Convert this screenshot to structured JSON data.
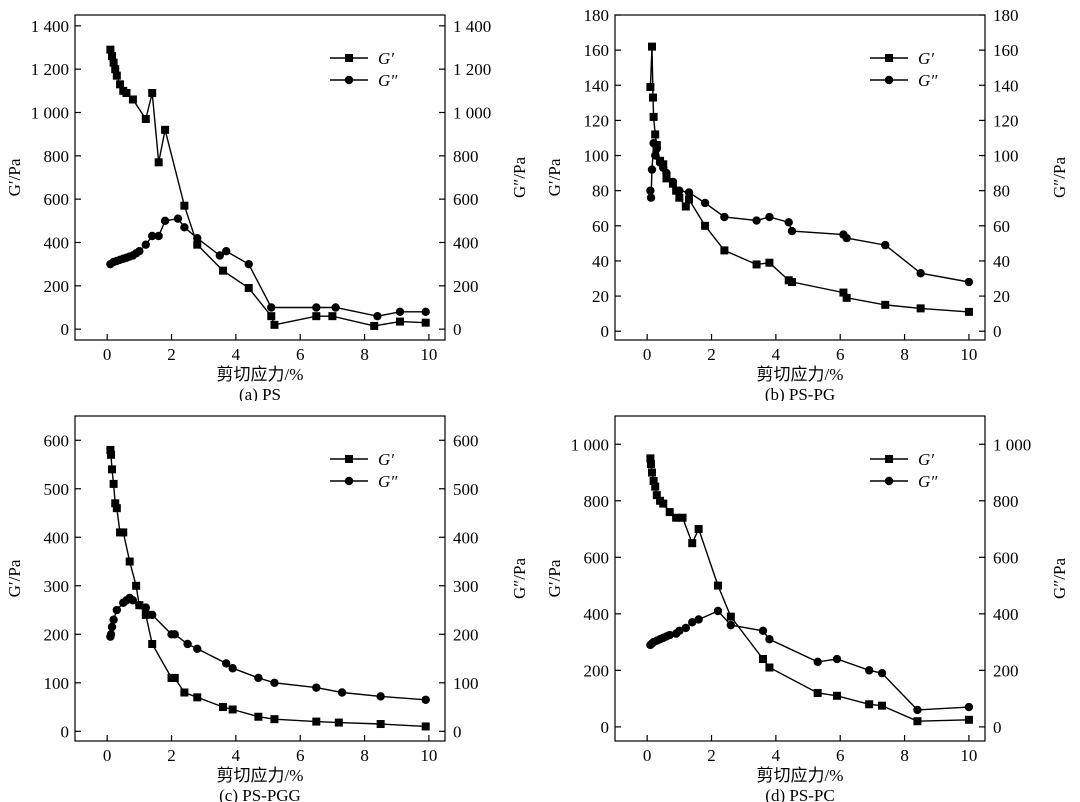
{
  "figure": {
    "panels": [
      {
        "caption": "(a) PS",
        "xlabel": "剪切应力/%",
        "ylabel_left": "G′/Pa",
        "ylabel_right": "G″/Pa",
        "legend": [
          "G′",
          "G″"
        ]
      },
      {
        "caption": "(b) PS-PG",
        "xlabel": "剪切应力/%",
        "ylabel_left": "G′/Pa",
        "ylabel_right": "G″/Pa",
        "legend": [
          "G′",
          "G″"
        ]
      },
      {
        "caption": "(c) PS-PGG",
        "xlabel": "剪切应力/%",
        "ylabel_left": "G′/Pa",
        "ylabel_right": "G″/Pa",
        "legend": [
          "G′",
          "G″"
        ]
      },
      {
        "caption": "(d) PS-PC",
        "xlabel": "剪切应力/%",
        "ylabel_left": "G′/Pa",
        "ylabel_right": "G″/Pa",
        "legend": [
          "G′",
          "G″"
        ]
      }
    ]
  },
  "chart_data": [
    {
      "type": "line",
      "title": "(a) PS",
      "xlabel": "剪切应力/%",
      "ylabel": "G′/Pa",
      "ylabel_right": "G″/Pa",
      "xlim": [
        -1,
        10.5
      ],
      "ylim": [
        -50,
        1450
      ],
      "xticks": [
        0,
        2,
        4,
        6,
        8,
        10
      ],
      "yticks": [
        0,
        200,
        400,
        600,
        800,
        1000,
        1200,
        1400
      ],
      "ytick_labels": [
        "0",
        "200",
        "400",
        "600",
        "800",
        "1 000",
        "1 200",
        "1 400"
      ],
      "legend_position": "top-right",
      "series": [
        {
          "name": "G′",
          "marker": "square",
          "x": [
            0.1,
            0.15,
            0.2,
            0.25,
            0.3,
            0.4,
            0.5,
            0.6,
            0.8,
            1.2,
            1.4,
            1.6,
            1.8,
            2.4,
            2.8,
            3.6,
            4.4,
            5.1,
            5.2,
            6.5,
            7.0,
            8.3,
            9.1,
            9.9
          ],
          "y": [
            1290,
            1260,
            1230,
            1200,
            1170,
            1130,
            1100,
            1090,
            1060,
            970,
            1090,
            770,
            920,
            570,
            390,
            270,
            190,
            60,
            20,
            60,
            60,
            15,
            35,
            30
          ]
        },
        {
          "name": "G″",
          "marker": "circle",
          "x": [
            0.1,
            0.2,
            0.3,
            0.4,
            0.5,
            0.6,
            0.7,
            0.8,
            0.9,
            1.0,
            1.2,
            1.4,
            1.6,
            1.8,
            2.2,
            2.4,
            2.8,
            3.5,
            3.7,
            4.4,
            5.1,
            6.5,
            7.1,
            8.4,
            9.1,
            9.9
          ],
          "y": [
            300,
            310,
            315,
            320,
            325,
            330,
            335,
            340,
            350,
            360,
            390,
            430,
            430,
            500,
            510,
            470,
            420,
            340,
            360,
            300,
            100,
            100,
            100,
            60,
            80,
            80
          ]
        }
      ]
    },
    {
      "type": "line",
      "title": "(b) PS-PG",
      "xlabel": "剪切应力/%",
      "ylabel": "G′/Pa",
      "ylabel_right": "G″/Pa",
      "xlim": [
        -1,
        10.5
      ],
      "ylim": [
        -5,
        180
      ],
      "xticks": [
        0,
        2,
        4,
        6,
        8,
        10
      ],
      "yticks": [
        0,
        20,
        40,
        60,
        80,
        100,
        120,
        140,
        160,
        180
      ],
      "ytick_labels": [
        "0",
        "20",
        "40",
        "60",
        "80",
        "100",
        "120",
        "140",
        "160",
        "180"
      ],
      "legend_position": "top-right",
      "series": [
        {
          "name": "G′",
          "marker": "square",
          "x": [
            0.1,
            0.15,
            0.18,
            0.2,
            0.25,
            0.3,
            0.4,
            0.5,
            0.6,
            0.8,
            0.9,
            1.0,
            1.2,
            1.3,
            1.8,
            2.4,
            3.4,
            3.8,
            4.4,
            4.5,
            6.1,
            6.2,
            7.4,
            8.5,
            10.0
          ],
          "y": [
            139,
            162,
            133,
            122,
            112,
            106,
            97,
            95,
            87,
            84,
            80,
            76,
            71,
            75,
            60,
            46,
            38,
            39,
            29,
            28,
            22,
            19,
            15,
            13,
            11
          ]
        },
        {
          "name": "G″",
          "marker": "circle",
          "x": [
            0.1,
            0.12,
            0.15,
            0.2,
            0.25,
            0.3,
            0.4,
            0.5,
            0.6,
            0.8,
            1.0,
            1.3,
            1.8,
            2.4,
            3.4,
            3.8,
            4.4,
            4.5,
            6.1,
            6.2,
            7.4,
            8.5,
            10.0
          ],
          "y": [
            80,
            76,
            92,
            107,
            100,
            104,
            96,
            93,
            90,
            85,
            80,
            79,
            73,
            65,
            63,
            65,
            62,
            57,
            55,
            53,
            49,
            33,
            28
          ]
        }
      ]
    },
    {
      "type": "line",
      "title": "(c) PS-PGG",
      "xlabel": "剪切应力/%",
      "ylabel": "G′/Pa",
      "ylabel_right": "G″/Pa",
      "xlim": [
        -1,
        10.5
      ],
      "ylim": [
        -20,
        650
      ],
      "xticks": [
        0,
        2,
        4,
        6,
        8,
        10
      ],
      "yticks": [
        0,
        100,
        200,
        300,
        400,
        500,
        600
      ],
      "ytick_labels": [
        "0",
        "100",
        "200",
        "300",
        "400",
        "500",
        "600"
      ],
      "legend_position": "top-right",
      "series": [
        {
          "name": "G′",
          "marker": "square",
          "x": [
            0.1,
            0.12,
            0.15,
            0.2,
            0.25,
            0.3,
            0.4,
            0.5,
            0.7,
            0.9,
            1.0,
            1.2,
            1.4,
            2.0,
            2.1,
            2.4,
            2.8,
            3.6,
            3.9,
            4.7,
            5.2,
            6.5,
            7.2,
            8.5,
            9.9
          ],
          "y": [
            580,
            570,
            540,
            510,
            470,
            460,
            410,
            410,
            350,
            300,
            260,
            240,
            180,
            110,
            110,
            80,
            70,
            50,
            45,
            30,
            25,
            20,
            18,
            15,
            10
          ]
        },
        {
          "name": "G″",
          "marker": "circle",
          "x": [
            0.1,
            0.12,
            0.15,
            0.2,
            0.3,
            0.5,
            0.6,
            0.7,
            0.8,
            1.0,
            1.2,
            1.4,
            2.0,
            2.1,
            2.5,
            2.8,
            3.7,
            3.9,
            4.7,
            5.2,
            6.5,
            7.3,
            8.5,
            9.9
          ],
          "y": [
            195,
            200,
            215,
            230,
            250,
            265,
            270,
            275,
            270,
            260,
            255,
            240,
            200,
            200,
            180,
            170,
            140,
            130,
            110,
            100,
            90,
            80,
            72,
            65
          ]
        }
      ]
    },
    {
      "type": "line",
      "title": "(d) PS-PC",
      "xlabel": "剪切应力/%",
      "ylabel": "G′/Pa",
      "ylabel_right": "G″/Pa",
      "xlim": [
        -1,
        10.5
      ],
      "ylim": [
        -50,
        1100
      ],
      "xticks": [
        0,
        2,
        4,
        6,
        8,
        10
      ],
      "yticks": [
        0,
        200,
        400,
        600,
        800,
        1000
      ],
      "ytick_labels": [
        "0",
        "200",
        "400",
        "600",
        "800",
        "1 000"
      ],
      "legend_position": "top-right",
      "series": [
        {
          "name": "G′",
          "marker": "square",
          "x": [
            0.1,
            0.12,
            0.15,
            0.2,
            0.25,
            0.3,
            0.4,
            0.5,
            0.7,
            0.9,
            1.1,
            1.4,
            1.6,
            2.2,
            2.6,
            3.6,
            3.8,
            5.3,
            5.9,
            6.9,
            7.3,
            8.4,
            10.0
          ],
          "y": [
            950,
            930,
            900,
            870,
            850,
            820,
            800,
            790,
            760,
            740,
            740,
            650,
            700,
            500,
            390,
            240,
            210,
            120,
            110,
            80,
            75,
            20,
            25
          ]
        },
        {
          "name": "G″",
          "marker": "circle",
          "x": [
            0.1,
            0.15,
            0.2,
            0.3,
            0.4,
            0.5,
            0.6,
            0.7,
            0.9,
            1.0,
            1.2,
            1.4,
            1.6,
            2.2,
            2.6,
            3.6,
            3.8,
            5.3,
            5.9,
            6.9,
            7.3,
            8.4,
            10.0
          ],
          "y": [
            290,
            295,
            300,
            305,
            310,
            315,
            320,
            325,
            330,
            340,
            350,
            370,
            380,
            410,
            360,
            340,
            310,
            230,
            240,
            200,
            190,
            60,
            70
          ]
        }
      ]
    }
  ]
}
